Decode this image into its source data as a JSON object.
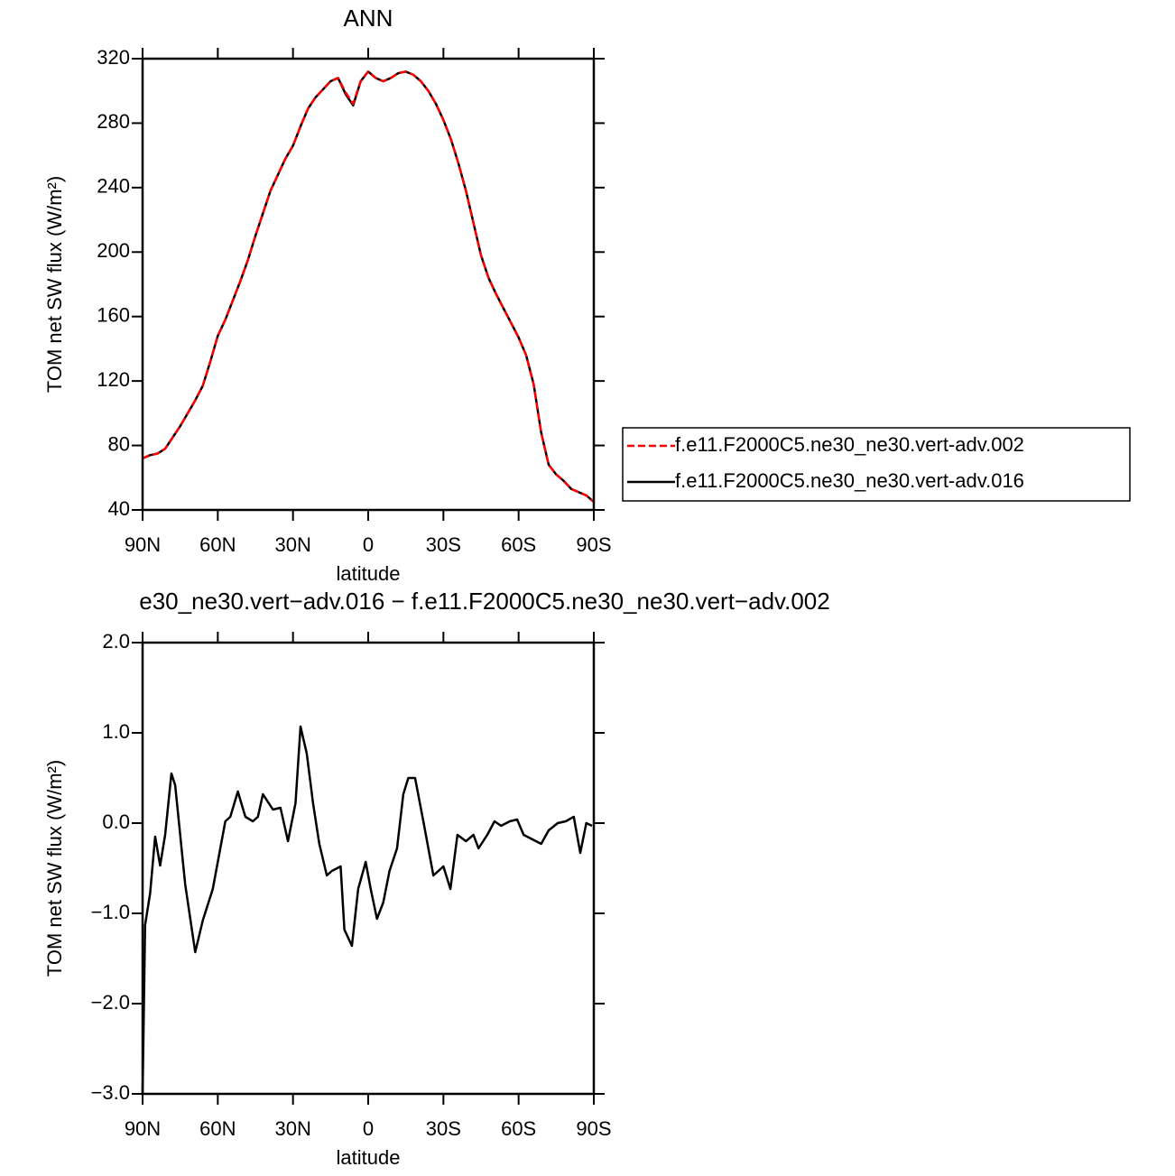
{
  "chart_data": [
    {
      "type": "line",
      "title": "ANN",
      "x_label": "latitude",
      "y_label": "TOM net SW flux (W/m²)",
      "x": [
        90,
        87,
        84,
        81,
        78,
        75,
        72,
        69,
        66,
        63,
        60,
        57,
        54,
        51,
        48,
        45,
        42,
        39,
        36,
        33,
        30,
        27,
        24,
        21,
        18,
        15,
        12,
        9,
        6,
        3,
        0,
        -3,
        -6,
        -9,
        -12,
        -15,
        -18,
        -21,
        -24,
        -27,
        -30,
        -33,
        -36,
        -39,
        -42,
        -45,
        -48,
        -51,
        -54,
        -57,
        -60,
        -63,
        -66,
        -69,
        -72,
        -75,
        -78,
        -81,
        -84,
        -87,
        -90
      ],
      "series": [
        {
          "name": "f.e11.F2000C5.ne30_ne30.vert-adv.002",
          "color": "#ff0000",
          "dashed": true,
          "values": [
            72,
            74,
            75,
            78,
            85,
            92,
            100,
            108,
            117,
            132,
            148,
            158,
            170,
            182,
            195,
            210,
            224,
            238,
            248,
            258,
            266,
            278,
            289,
            296,
            301,
            306,
            308,
            299,
            292,
            306,
            312,
            308,
            306,
            308,
            311,
            312,
            310,
            306,
            300,
            292,
            282,
            270,
            255,
            238,
            218,
            198,
            184,
            174,
            165,
            156,
            147,
            136,
            118,
            88,
            68,
            62,
            58,
            53,
            51,
            49,
            45
          ]
        },
        {
          "name": "f.e11.F2000C5.ne30_ne30.vert-adv.016",
          "color": "#000000",
          "dashed": false,
          "values": [
            72,
            74,
            75,
            78,
            85,
            92,
            100,
            108,
            117,
            132,
            148,
            158,
            170,
            182,
            195,
            210,
            224,
            238,
            248,
            258,
            266,
            278,
            289,
            296,
            301,
            306,
            308,
            298,
            291,
            306,
            312,
            308,
            306,
            308,
            311,
            312,
            310,
            306,
            300,
            292,
            282,
            270,
            255,
            238,
            218,
            198,
            184,
            174,
            165,
            156,
            147,
            136,
            118,
            88,
            68,
            62,
            58,
            53,
            51,
            49,
            45
          ]
        }
      ],
      "xlim": [
        90,
        -90
      ],
      "xticks": [
        {
          "value": 90,
          "label": "90N"
        },
        {
          "value": 60,
          "label": "60N"
        },
        {
          "value": 30,
          "label": "30N"
        },
        0,
        {
          "value": -30,
          "label": "30S"
        },
        {
          "value": -60,
          "label": "60S"
        },
        {
          "value": -90,
          "label": "90S"
        }
      ],
      "ylim": [
        40,
        320
      ],
      "yticks": [
        40,
        80,
        120,
        160,
        200,
        240,
        280,
        320
      ],
      "legend": "right"
    },
    {
      "type": "line",
      "title": "e30_ne30.vert−adv.016 − f.e11.F2000C5.ne30_ne30.vert−adv.002",
      "x_label": "latitude",
      "y_label": "TOM net SW flux (W/m²)",
      "x": [
        90,
        89,
        87,
        85,
        83,
        81,
        78.5,
        77,
        73,
        69,
        66,
        62,
        59,
        57,
        55,
        52,
        49,
        46,
        44,
        42,
        38,
        35,
        32,
        29,
        27,
        24.5,
        22,
        19.5,
        16.5,
        14.5,
        11,
        9.5,
        6.5,
        4,
        1,
        -1,
        -3.5,
        -6,
        -8.5,
        -11.5,
        -14,
        -16,
        -18.7,
        -22,
        -26,
        -30,
        -32.8,
        -35.6,
        -39,
        -42,
        -44,
        -47.5,
        -50.4,
        -53,
        -56.5,
        -59.4,
        -62,
        -65.5,
        -69,
        -72,
        -75.6,
        -78.8,
        -82,
        -84.6,
        -87,
        -89.3
      ],
      "series": [
        {
          "color": "#000000",
          "dashed": false,
          "values": [
            -3.0,
            -1.13,
            -0.78,
            -0.15,
            -0.47,
            -0.13,
            0.55,
            0.42,
            -0.68,
            -1.43,
            -1.08,
            -0.73,
            -0.28,
            0.02,
            0.07,
            0.35,
            0.07,
            0.02,
            0.07,
            0.32,
            0.15,
            0.17,
            -0.2,
            0.22,
            1.07,
            0.77,
            0.22,
            -0.23,
            -0.58,
            -0.53,
            -0.48,
            -1.18,
            -1.36,
            -0.73,
            -0.43,
            -0.73,
            -1.06,
            -0.88,
            -0.53,
            -0.28,
            0.32,
            0.5,
            0.5,
            0.02,
            -0.58,
            -0.48,
            -0.73,
            -0.13,
            -0.2,
            -0.13,
            -0.28,
            -0.13,
            0.02,
            -0.03,
            0.02,
            0.04,
            -0.13,
            -0.18,
            -0.23,
            -0.08,
            0.0,
            0.02,
            0.07,
            -0.33,
            0.0,
            -0.03
          ]
        }
      ],
      "xlim": [
        90,
        -90
      ],
      "xticks": [
        {
          "value": 90,
          "label": "90N"
        },
        {
          "value": 60,
          "label": "60N"
        },
        {
          "value": 30,
          "label": "30N"
        },
        0,
        {
          "value": -30,
          "label": "30S"
        },
        {
          "value": -60,
          "label": "60S"
        },
        {
          "value": -90,
          "label": "90S"
        }
      ],
      "ylim": [
        -3.0,
        2.0
      ],
      "yticks": [
        {
          "value": -3,
          "label": "−3.0"
        },
        {
          "value": -2,
          "label": "−2.0"
        },
        {
          "value": -1,
          "label": "−1.0"
        },
        {
          "value": 0,
          "label": "0.0"
        },
        {
          "value": 1,
          "label": "1.0"
        },
        {
          "value": 2,
          "label": "2.0"
        }
      ]
    }
  ]
}
